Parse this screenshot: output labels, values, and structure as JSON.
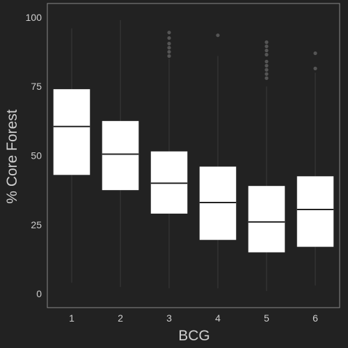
{
  "chart_data": {
    "type": "boxplot",
    "title": "",
    "xlabel": "BCG",
    "ylabel": "% Core Forest",
    "ylim": [
      -5,
      105
    ],
    "yticks": [
      0,
      25,
      50,
      75,
      100
    ],
    "grid": false,
    "categories": [
      "1",
      "2",
      "3",
      "4",
      "5",
      "6"
    ],
    "boxes": [
      {
        "category": "1",
        "whisker_low": 4,
        "q1": 43,
        "median": 60.5,
        "q3": 74,
        "whisker_high": 96,
        "outliers": []
      },
      {
        "category": "2",
        "whisker_low": 2.5,
        "q1": 37.5,
        "median": 50.5,
        "q3": 62.5,
        "whisker_high": 99,
        "outliers": []
      },
      {
        "category": "3",
        "whisker_low": 2,
        "q1": 29,
        "median": 40,
        "q3": 51.5,
        "whisker_high": 85,
        "outliers": [
          86,
          87.5,
          89,
          90.5,
          92.5,
          94.5
        ]
      },
      {
        "category": "4",
        "whisker_low": 2,
        "q1": 19.5,
        "median": 33,
        "q3": 46,
        "whisker_high": 86,
        "outliers": [
          93.5
        ]
      },
      {
        "category": "5",
        "whisker_low": 1,
        "q1": 15,
        "median": 26,
        "q3": 39,
        "whisker_high": 75,
        "outliers": [
          78,
          79.5,
          81,
          82.5,
          84,
          86.5,
          88,
          89.5,
          91
        ]
      },
      {
        "category": "6",
        "whisker_low": 3,
        "q1": 17,
        "median": 30.5,
        "q3": 42.5,
        "whisker_high": 80,
        "outliers": [
          81.5,
          87
        ]
      }
    ]
  },
  "colors": {
    "background": "#222222",
    "panel_border": "#8a8a8a",
    "box_fill": "#ffffff",
    "median": "#222222",
    "whisker": "#3a3a3a",
    "outlier": "#555555",
    "text": "#cfcfcf"
  }
}
